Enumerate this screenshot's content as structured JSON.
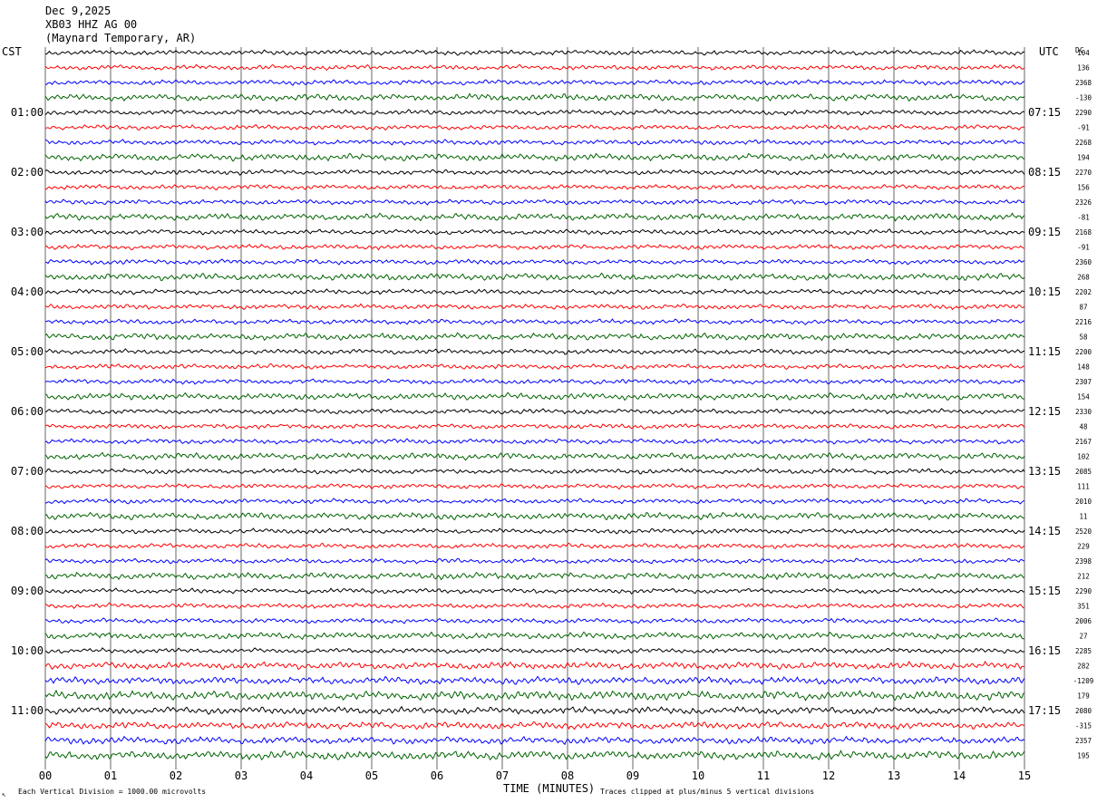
{
  "header": {
    "date": "Dec 9,2025",
    "station": "XB03 HHZ AG 00",
    "location": "(Maynard Temporary, AR)"
  },
  "left_tz": "CST",
  "right_tz": "UTC",
  "dc_label": "DC",
  "footer": {
    "scale_note": "Each Vertical Division = 1000.00 microvolts",
    "clip_note": "Traces clipped at plus/minus 5 vertical divisions",
    "corner_mark": "↖"
  },
  "colors": {
    "trace_cycle": [
      "#000000",
      "#ff0000",
      "#0000ff",
      "#006400"
    ],
    "grid": "#000000",
    "background": "#ffffff"
  },
  "chart_data": {
    "type": "line",
    "xlabel": "TIME (MINUTES)",
    "xlim": [
      0,
      15
    ],
    "x_ticks": [
      "00",
      "01",
      "02",
      "03",
      "04",
      "05",
      "06",
      "07",
      "08",
      "09",
      "10",
      "11",
      "12",
      "13",
      "14",
      "15"
    ],
    "left_hour_labels": [
      "01:00",
      "02:00",
      "03:00",
      "04:00",
      "05:00",
      "06:00",
      "07:00",
      "08:00",
      "09:00",
      "10:00",
      "11:00"
    ],
    "right_hour_labels": [
      "07:15",
      "08:15",
      "09:15",
      "10:15",
      "11:15",
      "12:15",
      "13:15",
      "14:15",
      "15:15",
      "16:15",
      "17:15"
    ],
    "traces_per_hour": 4,
    "dc_offsets": [
      "104",
      "136",
      "2368",
      "-130",
      "2290",
      "-91",
      "2268",
      "194",
      "2270",
      "156",
      "2326",
      "-81",
      "2168",
      "-91",
      "2360",
      "268",
      "2202",
      "87",
      "2216",
      "58",
      "2200",
      "148",
      "2307",
      "154",
      "2330",
      "48",
      "2167",
      "102",
      "2085",
      "111",
      "2010",
      "11",
      "2520",
      "229",
      "2398",
      "212",
      "2290",
      "351",
      "2006",
      "27",
      "2285",
      "282",
      "-1209",
      "179",
      "2080",
      "-315",
      "2357",
      "195"
    ]
  }
}
